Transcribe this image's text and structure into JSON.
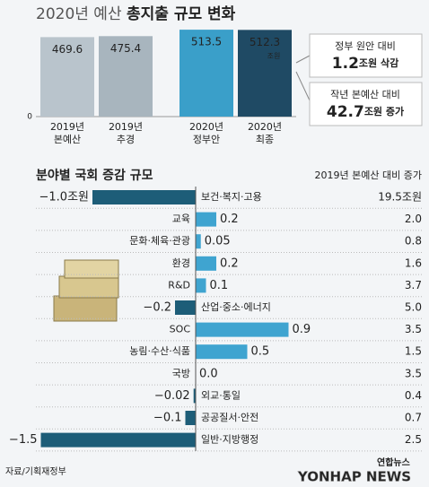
{
  "chart_data": [
    {
      "type": "bar",
      "title_light": "2020년 예산",
      "title_bold": "총지출 규모 변화",
      "categories": [
        [
          "2019년",
          "본예산"
        ],
        [
          "2019년",
          "추경"
        ],
        [
          "2020년",
          "정부안"
        ],
        [
          "2020년",
          "최종"
        ]
      ],
      "values": [
        469.6,
        475.4,
        513.5,
        512.3
      ],
      "unit": "조원",
      "colors": [
        "#b9c4cc",
        "#a8b5be",
        "#3a9fc9",
        "#1f4a64"
      ],
      "ylim": [
        0,
        530
      ],
      "yticks": [
        0
      ],
      "callouts": [
        {
          "label": "정부 원안 대비",
          "number": "1.2",
          "text": "조원 삭감",
          "color": "#d2322b"
        },
        {
          "label": "작년 본예산 대비",
          "number": "42.7",
          "text": "조원 증가",
          "color": "#1f6e9a"
        }
      ]
    },
    {
      "type": "hbar",
      "title": "분야별 국회 증감 규모",
      "subtitle": "2019년 본예산 대비 증가",
      "categories": [
        "보건·복지·고용",
        "교육",
        "문화·체육·관광",
        "환경",
        "R&D",
        "산업·중소·에너지",
        "SOC",
        "농림·수산·식품",
        "국방",
        "외교·통일",
        "공공질서·안전",
        "일반·지방행정"
      ],
      "values": [
        -1.0,
        0.2,
        0.05,
        0.2,
        0.1,
        -0.2,
        0.9,
        0.5,
        0,
        -0.02,
        -0.1,
        -1.5
      ],
      "value_labels": [
        "−1.0조원",
        "0.2",
        "0.05",
        "0.2",
        "0.1",
        "−0.2",
        "0.9",
        "0.5",
        "0.0",
        "−0.02",
        "−0.1",
        "−1.5"
      ],
      "increases": [
        19.5,
        2.0,
        0.8,
        1.6,
        3.7,
        5.0,
        3.5,
        1.5,
        3.5,
        0.4,
        0.7,
        2.5
      ],
      "increase_labels": [
        "19.5조원",
        "2.0",
        "0.8",
        "1.6",
        "3.7",
        "5.0",
        "3.5",
        "1.5",
        "3.5",
        "0.4",
        "0.7",
        "2.5"
      ],
      "colors": {
        "negative": "#1d5d78",
        "positive": "#3fa4d0"
      }
    }
  ],
  "source": "자료/기획재정부",
  "logo": "연합뉴스",
  "watermark": "YONHAP NEWS"
}
